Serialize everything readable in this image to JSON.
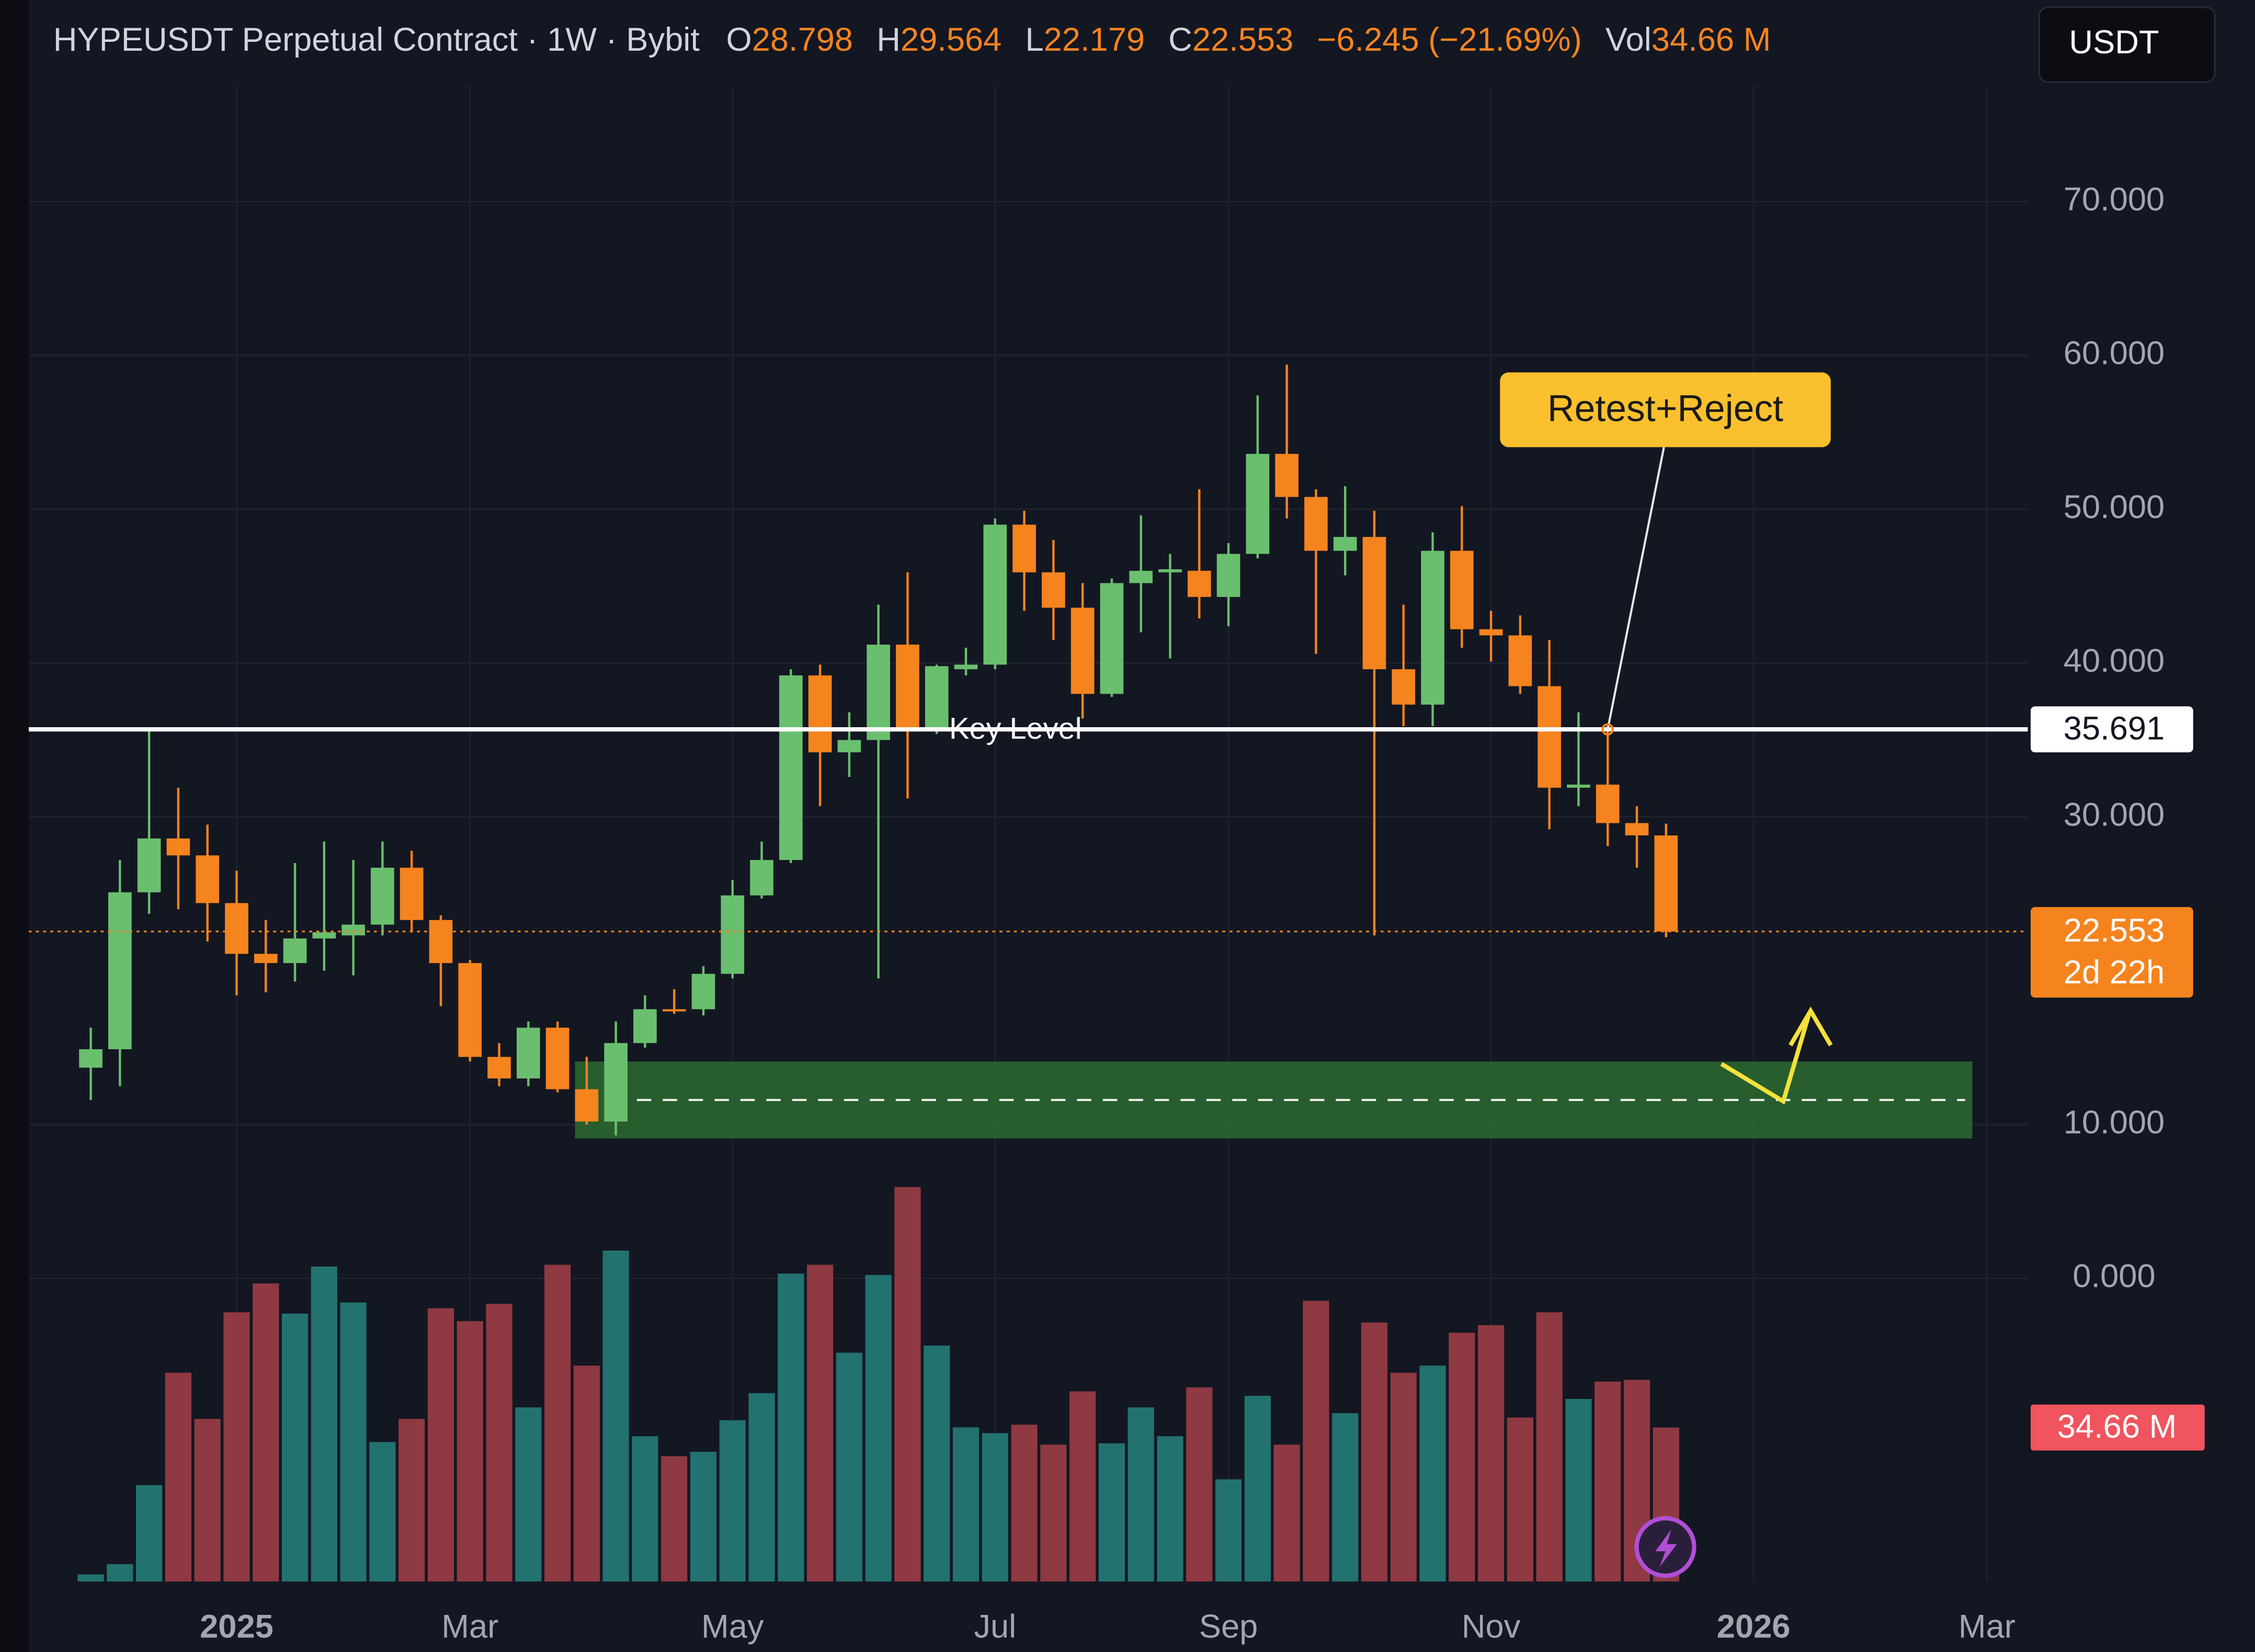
{
  "chart_data": {
    "type": "candlestick",
    "title": "HYPEUSDT Perpetual Contract · 1W · Bybit",
    "currency": "USDT",
    "legend_labels": [
      "O",
      "H",
      "L",
      "C",
      "Vol"
    ],
    "change_label": "−6.245 (−21.69%)",
    "volume_label": "34.66 M",
    "countdown": "2d 22h",
    "annotation": "Retest+Reject",
    "key_level": {
      "value": 35.691,
      "label": "Key Level"
    },
    "support_zone": {
      "low": 9.1,
      "high": 14.1,
      "mid": 11.6
    },
    "categories": [
      null,
      null,
      null,
      null,
      null,
      null,
      null,
      null,
      null,
      null,
      null,
      null,
      null,
      null,
      null,
      null,
      null,
      null,
      null,
      null,
      null,
      null,
      null,
      null,
      null,
      null,
      null,
      null,
      null,
      null,
      null,
      null,
      null,
      null,
      null,
      null,
      null,
      null,
      null,
      null,
      null,
      null,
      null,
      null,
      null,
      null,
      null,
      null,
      null,
      null,
      null,
      null,
      null,
      null,
      null
    ],
    "open": [
      13.7,
      14.9,
      25.1,
      28.6,
      27.5,
      24.4,
      21.1,
      20.5,
      22.1,
      22.3,
      23.0,
      26.7,
      23.3,
      20.5,
      14.4,
      13.0,
      16.3,
      12.3,
      10.2,
      15.3,
      17.5,
      17.5,
      19.8,
      24.9,
      27.2,
      39.2,
      34.2,
      35.0,
      41.2,
      35.7,
      39.6,
      39.9,
      49.0,
      45.9,
      43.6,
      38.0,
      45.2,
      45.9,
      46.0,
      44.3,
      47.1,
      53.6,
      50.8,
      47.3,
      48.2,
      39.6,
      37.3,
      47.3,
      42.2,
      41.8,
      38.5,
      31.9,
      32.1,
      29.6,
      28.798
    ],
    "high": [
      16.3,
      27.2,
      35.6,
      31.9,
      29.5,
      26.5,
      23.3,
      27.0,
      28.4,
      27.2,
      28.4,
      27.8,
      23.6,
      20.7,
      15.3,
      16.7,
      16.7,
      14.4,
      16.7,
      18.4,
      18.8,
      20.3,
      25.9,
      28.4,
      39.6,
      39.9,
      36.8,
      43.8,
      45.9,
      39.9,
      41.0,
      49.4,
      49.9,
      48.0,
      45.2,
      45.5,
      49.6,
      47.1,
      51.3,
      47.8,
      57.4,
      59.4,
      51.3,
      51.5,
      49.9,
      43.8,
      48.5,
      50.2,
      43.4,
      43.1,
      41.5,
      36.8,
      35.9,
      30.7,
      29.564
    ],
    "low": [
      11.6,
      12.5,
      23.7,
      24.0,
      21.9,
      18.4,
      18.6,
      19.3,
      20.0,
      19.7,
      22.3,
      22.5,
      17.7,
      14.1,
      12.5,
      12.5,
      12.1,
      10.0,
      9.3,
      15.0,
      17.2,
      17.1,
      19.5,
      24.7,
      27.0,
      30.7,
      32.6,
      19.5,
      31.2,
      35.4,
      39.2,
      39.6,
      43.4,
      41.5,
      36.4,
      37.8,
      42.0,
      40.3,
      42.9,
      42.4,
      46.8,
      49.4,
      40.6,
      45.7,
      22.3,
      35.9,
      35.9,
      41.0,
      40.1,
      38.0,
      29.2,
      30.7,
      28.1,
      26.7,
      22.179
    ],
    "close": [
      14.9,
      25.1,
      28.6,
      27.5,
      24.4,
      21.1,
      20.5,
      22.1,
      22.5,
      23.0,
      26.7,
      23.3,
      20.5,
      14.4,
      13.0,
      16.3,
      12.3,
      10.2,
      15.3,
      17.5,
      17.4,
      19.8,
      24.9,
      27.2,
      39.2,
      34.2,
      35.0,
      41.2,
      35.7,
      39.8,
      39.9,
      49.0,
      45.9,
      43.6,
      38.0,
      45.2,
      46.0,
      46.1,
      44.3,
      47.1,
      53.6,
      50.8,
      47.3,
      48.2,
      39.6,
      37.3,
      47.3,
      42.2,
      41.8,
      38.5,
      31.9,
      32.1,
      29.6,
      28.8,
      22.553
    ],
    "volume": [
      1.6,
      3.9,
      21.7,
      47.0,
      36.6,
      60.6,
      67.1,
      60.3,
      70.9,
      62.8,
      31.4,
      36.6,
      61.5,
      58.6,
      62.5,
      39.2,
      71.3,
      48.6,
      74.5,
      32.7,
      28.2,
      29.2,
      36.3,
      42.4,
      69.3,
      71.3,
      51.5,
      69.0,
      88.8,
      53.1,
      34.7,
      33.4,
      35.3,
      30.8,
      42.8,
      31.1,
      39.2,
      32.7,
      43.7,
      23.0,
      41.8,
      30.8,
      63.2,
      37.9,
      58.3,
      47.0,
      48.6,
      56.0,
      57.7,
      36.9,
      60.6,
      41.1,
      45.0,
      45.4,
      34.66
    ],
    "up_color": "#6abf6e",
    "down_color": "#f5841f",
    "volume_up_color": "#22726f",
    "volume_down_color": "#8f3942",
    "zone_color": "#2d6a2f",
    "xlim": [
      -0.4,
      66.4
    ],
    "xticks": [
      {
        "value": 5,
        "label": "2025"
      },
      {
        "value": 13,
        "label": "Mar"
      },
      {
        "value": 22,
        "label": "May"
      },
      {
        "value": 31,
        "label": "Jul"
      },
      {
        "value": 39,
        "label": "Sep"
      },
      {
        "value": 48,
        "label": "Nov"
      },
      {
        "value": 57,
        "label": "2026"
      },
      {
        "value": 65,
        "label": "Mar"
      }
    ],
    "ylim": [
      -19.7,
      83.1
    ],
    "yticks": [
      {
        "value": 0,
        "label": "0.000"
      },
      {
        "value": 10,
        "label": "10.000"
      },
      {
        "value": 30,
        "label": "30.000"
      },
      {
        "value": 40,
        "label": "40.000"
      },
      {
        "value": 50,
        "label": "50.000"
      },
      {
        "value": 60,
        "label": "60.000"
      },
      {
        "value": 70,
        "label": "70.000"
      }
    ],
    "volume_lim": [
      0,
      356
    ],
    "grid": true
  }
}
